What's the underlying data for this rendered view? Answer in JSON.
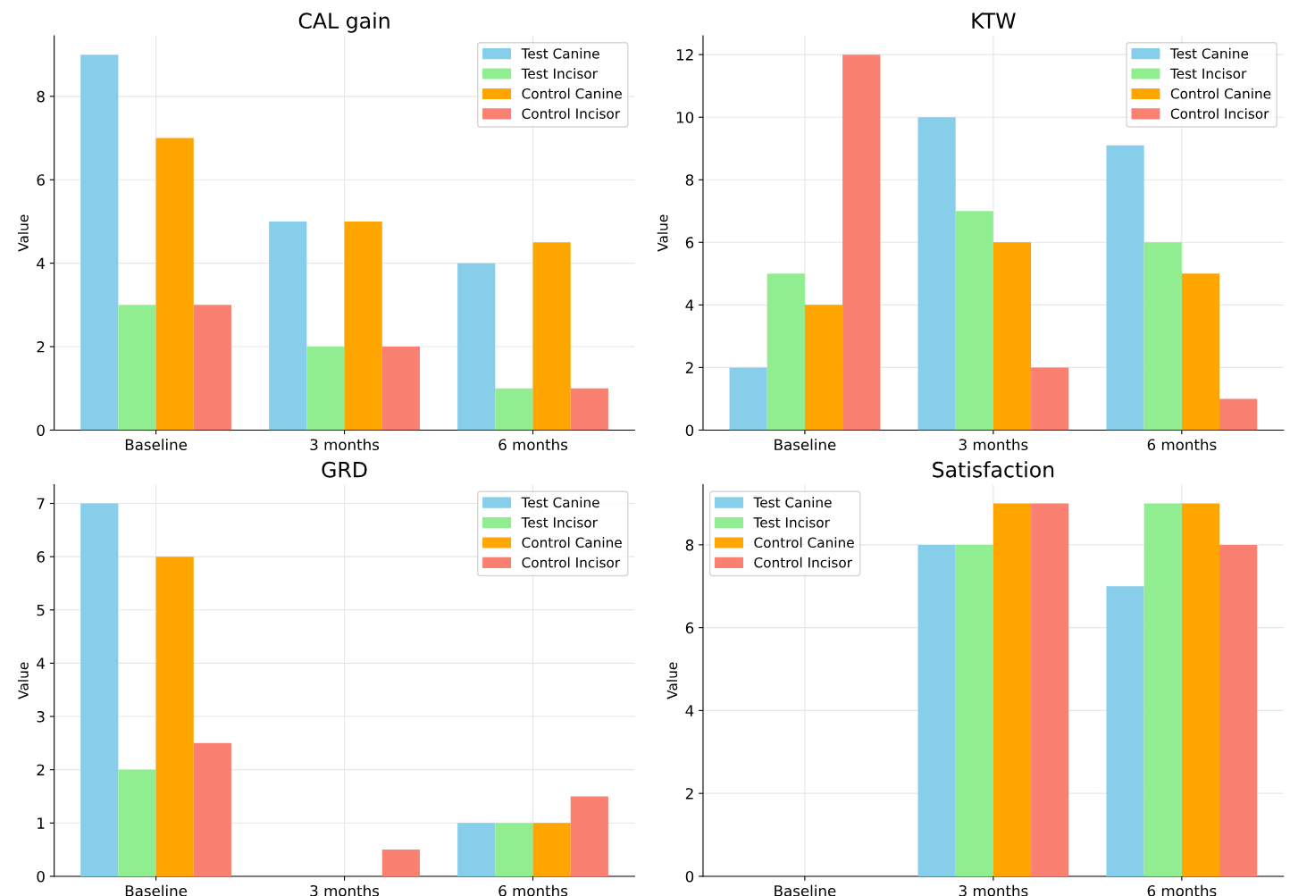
{
  "chart_data": [
    {
      "type": "bar",
      "title": "CAL gain",
      "ylabel": "Value",
      "categories": [
        "Baseline",
        "3 months",
        "6 months"
      ],
      "series": [
        {
          "name": "Test Canine",
          "color": "#87ceeb",
          "values": [
            9,
            5,
            4
          ]
        },
        {
          "name": "Test Incisor",
          "color": "#90ee90",
          "values": [
            3,
            2,
            1
          ]
        },
        {
          "name": "Control Canine",
          "color": "#ffa500",
          "values": [
            7,
            5,
            4.5
          ]
        },
        {
          "name": "Control Incisor",
          "color": "#fa8072",
          "values": [
            3,
            2,
            1
          ]
        }
      ],
      "ylim": [
        0,
        9.45
      ],
      "yticks": [
        0,
        2,
        4,
        6,
        8
      ],
      "grid": true,
      "legend": "top right"
    },
    {
      "type": "bar",
      "title": "KTW",
      "ylabel": "Value",
      "categories": [
        "Baseline",
        "3 months",
        "6 months"
      ],
      "series": [
        {
          "name": "Test Canine",
          "color": "#87ceeb",
          "values": [
            2,
            10,
            9.1
          ]
        },
        {
          "name": "Test Incisor",
          "color": "#90ee90",
          "values": [
            5,
            7,
            6
          ]
        },
        {
          "name": "Control Canine",
          "color": "#ffa500",
          "values": [
            4,
            6,
            5
          ]
        },
        {
          "name": "Control Incisor",
          "color": "#fa8072",
          "values": [
            12,
            2,
            1
          ]
        }
      ],
      "ylim": [
        0,
        12.6
      ],
      "yticks": [
        0,
        2,
        4,
        6,
        8,
        10,
        12
      ],
      "grid": true,
      "legend": "top right"
    },
    {
      "type": "bar",
      "title": "GRD",
      "ylabel": "Value",
      "categories": [
        "Baseline",
        "3 months",
        "6 months"
      ],
      "series": [
        {
          "name": "Test Canine",
          "color": "#87ceeb",
          "values": [
            7,
            0,
            1
          ]
        },
        {
          "name": "Test Incisor",
          "color": "#90ee90",
          "values": [
            2,
            0,
            1
          ]
        },
        {
          "name": "Control Canine",
          "color": "#ffa500",
          "values": [
            6,
            0,
            1
          ]
        },
        {
          "name": "Control Incisor",
          "color": "#fa8072",
          "values": [
            2.5,
            0.5,
            1.5
          ]
        }
      ],
      "ylim": [
        0,
        7.35
      ],
      "yticks": [
        0,
        1,
        2,
        3,
        4,
        5,
        6,
        7
      ],
      "grid": true,
      "legend": "top right"
    },
    {
      "type": "bar",
      "title": "Satisfaction",
      "ylabel": "Value",
      "categories": [
        "Baseline",
        "3 months",
        "6 months"
      ],
      "series": [
        {
          "name": "Test Canine",
          "color": "#87ceeb",
          "values": [
            0,
            8,
            7
          ]
        },
        {
          "name": "Test Incisor",
          "color": "#90ee90",
          "values": [
            0,
            8,
            9
          ]
        },
        {
          "name": "Control Canine",
          "color": "#ffa500",
          "values": [
            0,
            9,
            9
          ]
        },
        {
          "name": "Control Incisor",
          "color": "#fa8072",
          "values": [
            0,
            9,
            8
          ]
        }
      ],
      "ylim": [
        0,
        9.45
      ],
      "yticks": [
        0,
        2,
        4,
        6,
        8
      ],
      "grid": true,
      "legend": "top left"
    }
  ]
}
